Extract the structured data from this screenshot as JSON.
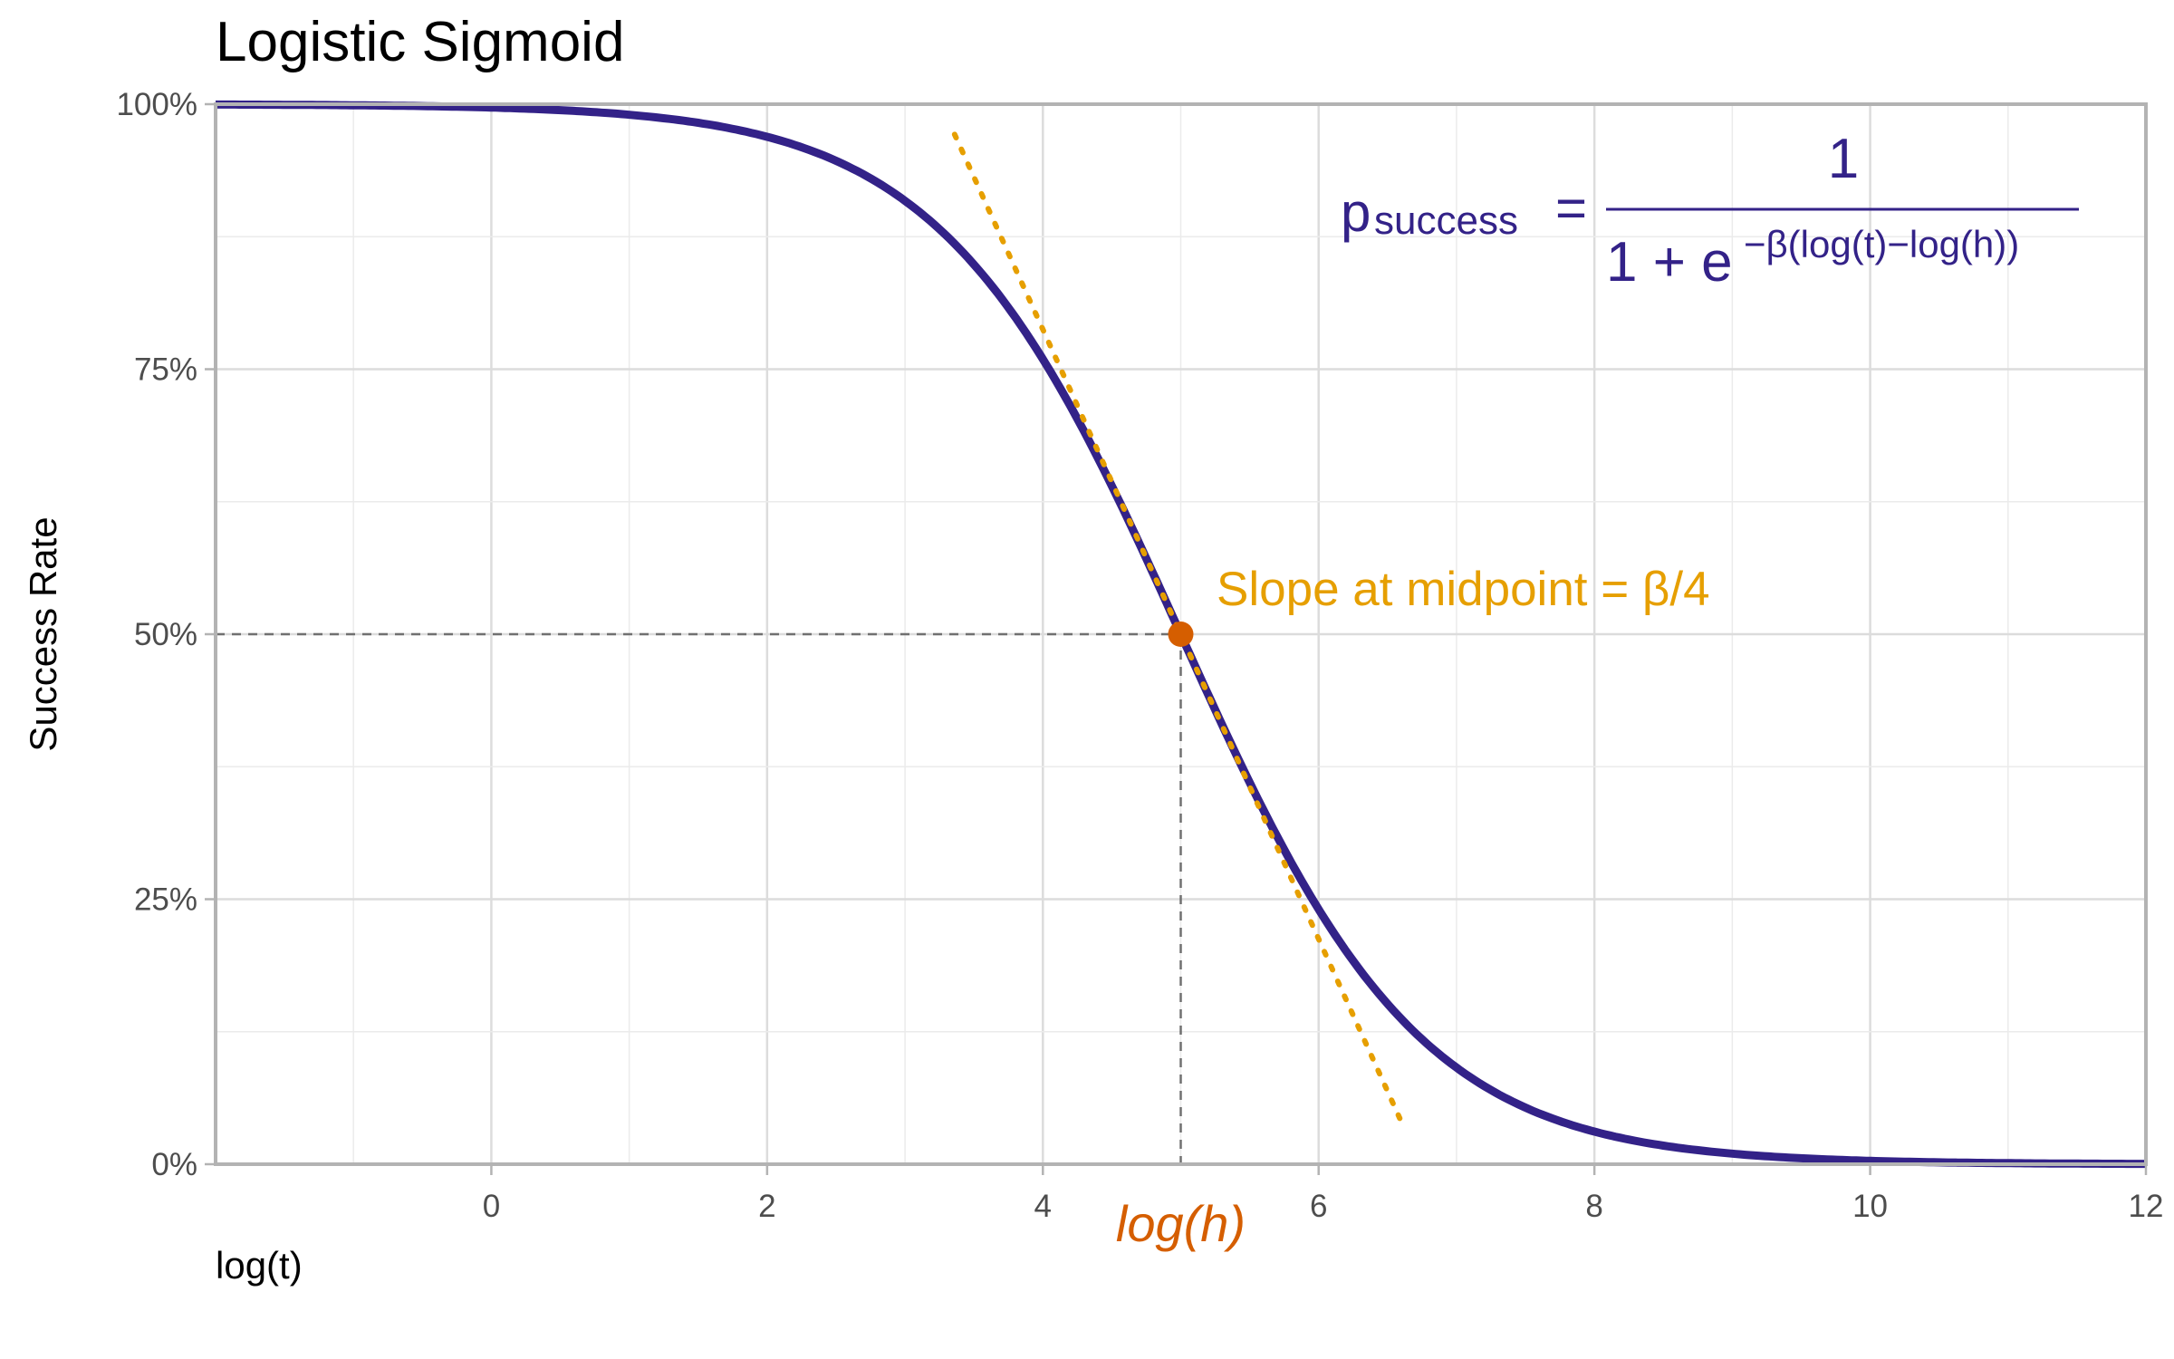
{
  "chart_data": {
    "type": "line",
    "title": "Logistic Sigmoid",
    "xlabel": "log(t)",
    "ylabel": "Success Rate",
    "xlim": [
      -2,
      12
    ],
    "ylim": [
      0,
      1
    ],
    "x_ticks": [
      0,
      2,
      4,
      6,
      8,
      10,
      12
    ],
    "x_tick_labels": [
      "0",
      "2",
      "4",
      "6",
      "8",
      "10",
      "12"
    ],
    "y_ticks": [
      0,
      0.25,
      0.5,
      0.75,
      1
    ],
    "y_tick_labels": [
      "0%",
      "25%",
      "50%",
      "75%",
      "100%"
    ],
    "grid": true,
    "series": [
      {
        "function": "logistic_decreasing",
        "midpoint": 5,
        "beta": 1.15,
        "color": "#332288"
      }
    ],
    "tangent": {
      "x_range": [
        3.36,
        6.62
      ],
      "slope_label": "Slope at midpoint = β/4",
      "color": "#E69F00"
    },
    "midpoint": {
      "x": 5,
      "y": 0.5,
      "label": "log(h)",
      "color": "#D55E00"
    },
    "formula": {
      "lhs": "p",
      "lhs_subscript": "success",
      "equals": "=",
      "numerator": "1",
      "denominator": "1 + e",
      "exponent": "−β(log(t)−log(h))",
      "color": "#332288"
    }
  }
}
